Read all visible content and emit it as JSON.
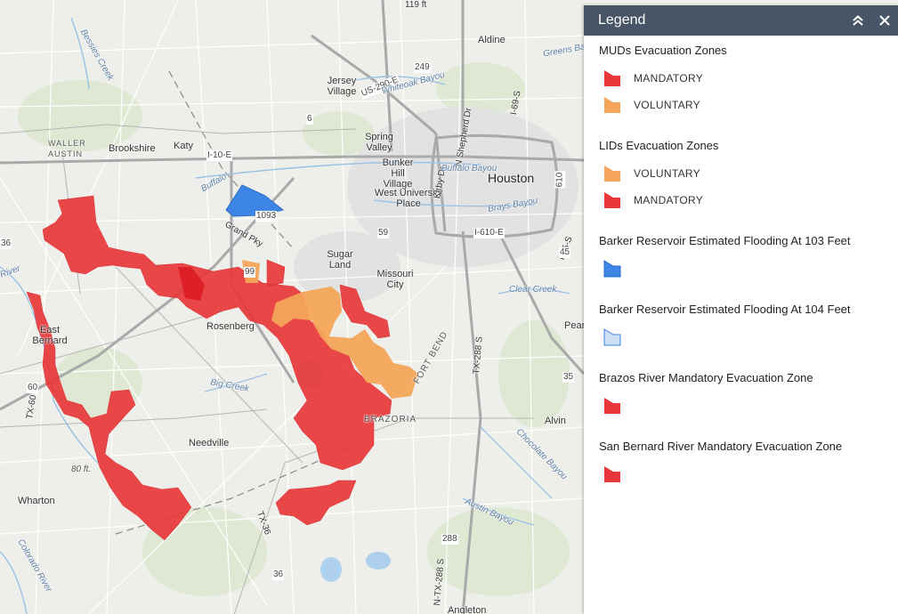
{
  "colors": {
    "mandatory": "#e8373a",
    "voluntary": "#f4a55a",
    "flood103": "#3d86e6",
    "flood104": "#cfe0f5",
    "header": "#485566"
  },
  "legend": {
    "title": "Legend",
    "collapse_icon": "double-chevron-up-icon",
    "close_icon": "close-icon",
    "layers": [
      {
        "title": "MUDs Evacuation Zones",
        "items": [
          {
            "label": "MANDATORY",
            "color": "#e8373a"
          },
          {
            "label": "VOLUNTARY",
            "color": "#f4a55a"
          }
        ]
      },
      {
        "title": "LIDs Evacuation Zones",
        "items": [
          {
            "label": "VOLUNTARY",
            "color": "#f4a55a"
          },
          {
            "label": "MANDATORY",
            "color": "#e8373a"
          }
        ]
      },
      {
        "title": "Barker Reservoir Estimated Flooding At 103 Feet",
        "items": [
          {
            "label": "",
            "color": "#3d86e6"
          }
        ]
      },
      {
        "title": "Barker Reservoir Estimated Flooding At 104 Feet",
        "items": [
          {
            "label": "",
            "color": "#cfe0f5"
          }
        ]
      },
      {
        "title": "Brazos River Mandatory Evacuation Zone",
        "items": [
          {
            "label": "",
            "color": "#e8373a"
          }
        ]
      },
      {
        "title": "San Bernard River Mandatory Evacuation Zone",
        "items": [
          {
            "label": "",
            "color": "#e8373a"
          }
        ]
      }
    ]
  },
  "map": {
    "places": {
      "aldine": "Aldine",
      "jersey_village": "Jersey Village",
      "brookshire": "Brookshire",
      "katy": "Katy",
      "spring_valley": "Spring Valley",
      "bunker_hill": "Bunker Hill Village",
      "west_university": "West University Place",
      "houston": "Houston",
      "sugar_land": "Sugar Land",
      "missouri_city": "Missouri City",
      "rosenberg": "Rosenberg",
      "east_bernard": "East Bernard",
      "needville": "Needville",
      "wharton": "Wharton",
      "alvin": "Alvin",
      "angleton": "Angleton",
      "pearland": "Pear",
      "brazoria": "BRAZORIA",
      "fort_bend": "FORT BEND",
      "waller_austin": "WALLER AUSTIN"
    },
    "roads": {
      "i10": "I-10-E",
      "us290": "US-290-E",
      "i610": "I-610-E",
      "r249": "249",
      "r610": "610",
      "r59": "59",
      "r99": "99",
      "r1093": "1093",
      "grand_pky": "Grand Pky",
      "kirby": "Kirby Dr",
      "shepherd": "N Shepherd Dr",
      "i69": "I-69-S",
      "tx288": "TX-288 S",
      "tx288n": "N-TX-288 S",
      "r288": "288",
      "tx36": "TX-36",
      "r36": "36",
      "r36b": "36",
      "r35": "35",
      "r6": "6",
      "tx60": "TX-60",
      "r60": "60",
      "i45": "I-45-S",
      "r45": "45",
      "r119": "119 ft"
    },
    "water": {
      "whiteoak": "Whiteoak Bayou",
      "buffalo": "Buffalo Bayou",
      "brays": "Brays Bayou",
      "clear_creek": "Clear Creek",
      "big_creek": "Big Creek",
      "chocolate": "Chocolate Bayou",
      "austin_bayou": "Austin Bayou",
      "colorado": "Colorado River",
      "bessies": "Bessies Creek",
      "greens": "Greens Bayou",
      "buffalo_w": "Buffalo",
      "river_w": "River"
    },
    "elevation": "80 ft."
  }
}
